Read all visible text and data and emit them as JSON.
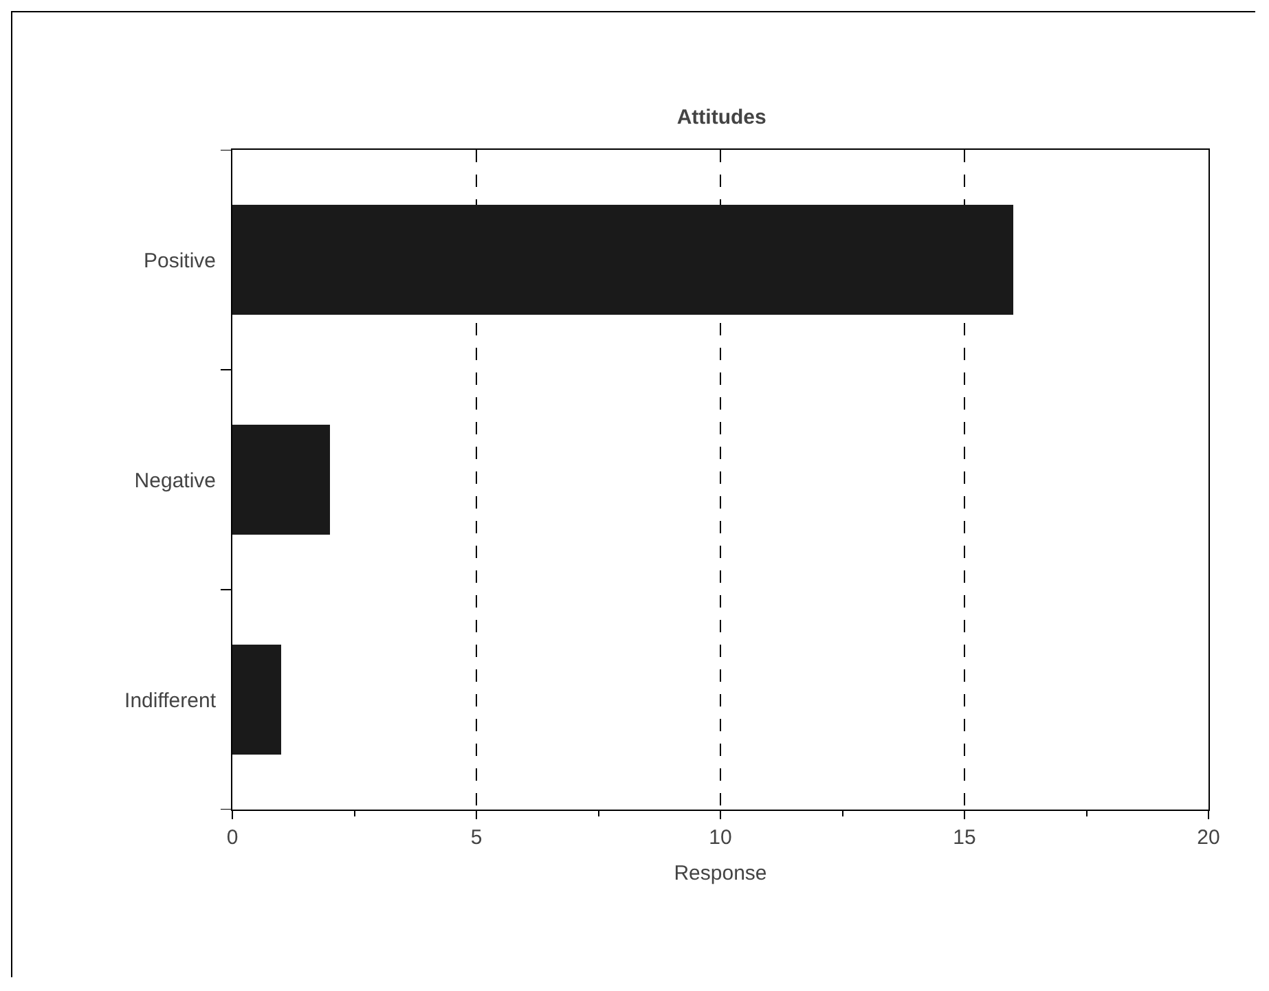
{
  "chart_data": {
    "type": "bar",
    "title": "Attitudes",
    "xlabel": "Response",
    "orientation": "horizontal",
    "categories": [
      "Positive",
      "Negative",
      "Indifferent"
    ],
    "values": [
      16,
      2,
      1
    ],
    "color": "#1a1a1a",
    "xlim": [
      0,
      20
    ],
    "xticks": [
      0,
      {
        "value": 2.5,
        "label": null
      },
      5,
      {
        "value": 7.5,
        "label": null
      },
      10,
      {
        "value": 12.5,
        "label": null
      },
      15,
      {
        "value": 17.5,
        "label": null
      },
      20
    ],
    "grid": "x"
  }
}
